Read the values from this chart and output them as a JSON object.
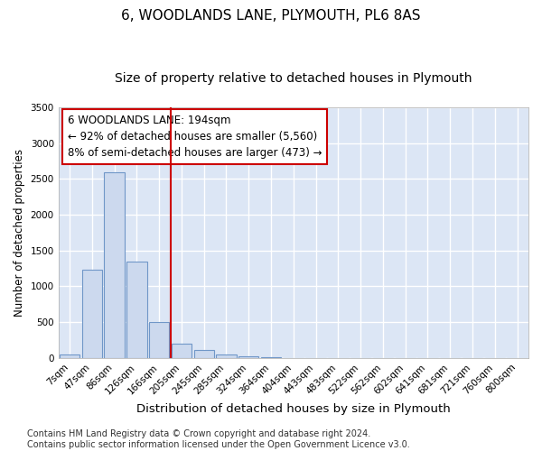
{
  "title": "6, WOODLANDS LANE, PLYMOUTH, PL6 8AS",
  "subtitle": "Size of property relative to detached houses in Plymouth",
  "xlabel": "Distribution of detached houses by size in Plymouth",
  "ylabel": "Number of detached properties",
  "categories": [
    "7sqm",
    "47sqm",
    "86sqm",
    "126sqm",
    "166sqm",
    "205sqm",
    "245sqm",
    "285sqm",
    "324sqm",
    "364sqm",
    "404sqm",
    "443sqm",
    "483sqm",
    "522sqm",
    "562sqm",
    "602sqm",
    "641sqm",
    "681sqm",
    "721sqm",
    "760sqm",
    "800sqm"
  ],
  "values": [
    50,
    1230,
    2590,
    1350,
    500,
    200,
    110,
    50,
    30,
    10,
    5,
    0,
    0,
    0,
    0,
    0,
    0,
    0,
    0,
    0,
    0
  ],
  "bar_color": "#ccd9ee",
  "bar_edge_color": "#7097c8",
  "vline_x": 4.5,
  "vline_color": "#cc0000",
  "annotation_text": "6 WOODLANDS LANE: 194sqm\n← 92% of detached houses are smaller (5,560)\n8% of semi-detached houses are larger (473) →",
  "annotation_box_color": "#cc0000",
  "ylim": [
    0,
    3500
  ],
  "yticks": [
    0,
    500,
    1000,
    1500,
    2000,
    2500,
    3000,
    3500
  ],
  "background_color": "#dce6f5",
  "grid_color": "#ffffff",
  "footer_line1": "Contains HM Land Registry data © Crown copyright and database right 2024.",
  "footer_line2": "Contains public sector information licensed under the Open Government Licence v3.0.",
  "title_fontsize": 11,
  "subtitle_fontsize": 10,
  "xlabel_fontsize": 9.5,
  "ylabel_fontsize": 8.5,
  "tick_fontsize": 7.5,
  "annotation_fontsize": 8.5,
  "footer_fontsize": 7
}
